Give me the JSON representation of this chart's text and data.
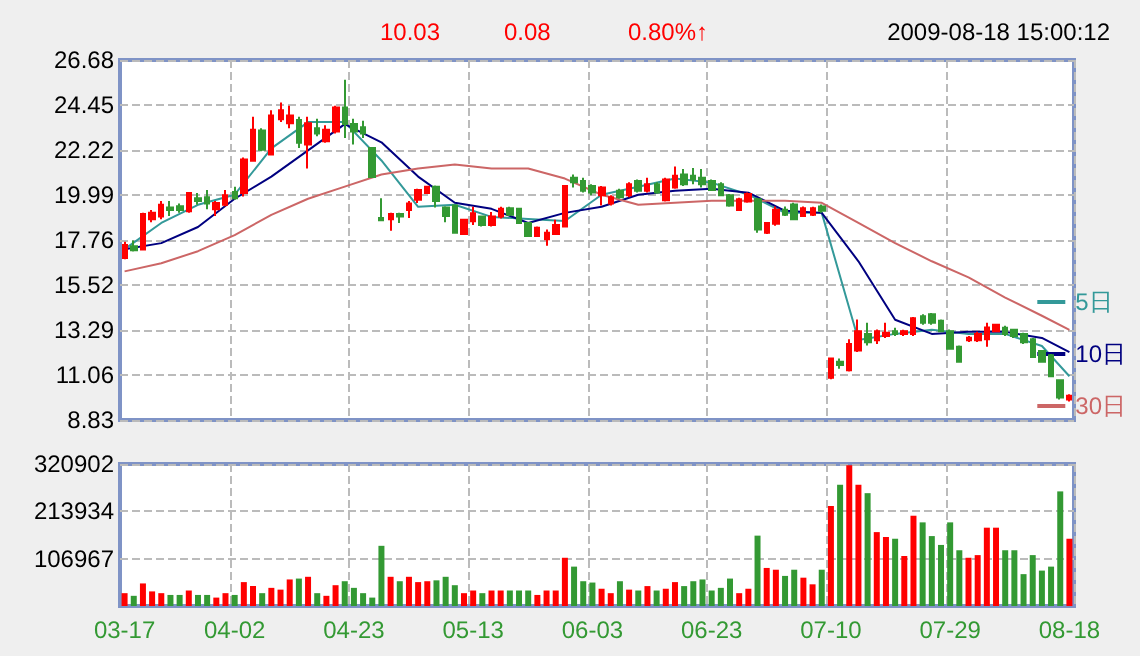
{
  "chart_data": [
    {
      "type": "candlestick",
      "tick_labels": "y",
      "grid": true,
      "legend": "right",
      "annotations": [
        "10.03",
        "0.08",
        "0.80%↑",
        "2009-08-18 15:00:12"
      ],
      "categories": [
        null,
        null,
        null,
        null,
        null,
        null,
        null,
        null,
        null,
        null,
        null,
        null,
        null,
        null,
        null,
        null,
        null,
        null,
        null,
        null,
        null,
        null,
        null,
        null,
        null,
        null,
        null,
        null,
        null,
        null,
        null,
        null,
        null,
        null,
        null,
        null,
        null,
        null,
        null,
        null,
        null,
        null,
        null,
        null,
        null,
        null,
        null,
        null,
        null,
        null,
        null,
        null,
        null,
        null,
        null,
        null,
        null,
        null,
        null,
        null,
        null,
        null,
        null,
        null,
        null,
        null,
        null,
        null,
        null,
        null,
        null,
        null,
        null,
        null,
        null,
        null,
        null,
        null,
        null,
        null,
        null,
        null,
        null,
        null,
        null,
        null,
        null,
        null,
        null,
        null,
        null,
        null,
        null,
        null,
        null,
        null,
        null,
        null,
        null,
        null,
        null,
        null,
        null,
        null
      ],
      "ylim": [
        8.83,
        26.68
      ],
      "yticks": [
        8.83,
        11.06,
        13.29,
        15.52,
        17.76,
        19.99,
        22.22,
        24.45,
        26.68
      ],
      "ohlc": [
        [
          16.86,
          17.67,
          16.8,
          17.51
        ],
        [
          17.44,
          17.73,
          17.18,
          17.25
        ],
        [
          17.28,
          19.11,
          17.25,
          19.05
        ],
        [
          18.79,
          19.24,
          18.63,
          19.11
        ],
        [
          18.92,
          19.69,
          18.79,
          19.5
        ],
        [
          19.37,
          19.69,
          18.95,
          19.24
        ],
        [
          19.43,
          19.56,
          19.11,
          19.24
        ],
        [
          19.18,
          20.14,
          19.11,
          20.08
        ],
        [
          19.82,
          20.08,
          19.5,
          19.69
        ],
        [
          19.88,
          20.24,
          19.28,
          19.56
        ],
        [
          19.28,
          19.69,
          18.95,
          19.59
        ],
        [
          19.5,
          20.24,
          19.43,
          19.98
        ],
        [
          20.14,
          20.4,
          19.75,
          19.82
        ],
        [
          20.08,
          21.84,
          19.91,
          21.75
        ],
        [
          21.68,
          23.87,
          21.68,
          23.22
        ],
        [
          23.19,
          23.29,
          22.16,
          22.23
        ],
        [
          22.0,
          24.19,
          21.94,
          23.93
        ],
        [
          23.74,
          24.57,
          23.61,
          24.19
        ],
        [
          23.55,
          24.41,
          23.29,
          23.93
        ],
        [
          23.71,
          23.87,
          22.32,
          22.58
        ],
        [
          22.49,
          23.87,
          21.3,
          23.55
        ],
        [
          23.29,
          23.77,
          22.9,
          23.03
        ],
        [
          22.65,
          23.45,
          22.58,
          23.22
        ],
        [
          23.13,
          24.41,
          23.03,
          24.32
        ],
        [
          24.32,
          25.7,
          22.81,
          23.51
        ],
        [
          23.51,
          23.77,
          22.49,
          23.13
        ],
        [
          23.35,
          23.67,
          22.81,
          23.03
        ],
        [
          22.32,
          22.32,
          20.88,
          20.88
        ],
        [
          18.85,
          19.82,
          18.73,
          18.73
        ],
        [
          18.79,
          19.11,
          18.21,
          19.05
        ],
        [
          19.05,
          19.11,
          18.6,
          18.92
        ],
        [
          19.24,
          19.69,
          18.85,
          19.56
        ],
        [
          19.75,
          20.3,
          19.59,
          20.24
        ],
        [
          20.08,
          20.4,
          20.08,
          20.4
        ],
        [
          20.4,
          20.46,
          19.37,
          19.69
        ],
        [
          19.37,
          19.43,
          18.63,
          18.95
        ],
        [
          19.46,
          19.5,
          18.11,
          18.11
        ],
        [
          18.05,
          18.76,
          18.0,
          18.76
        ],
        [
          18.69,
          19.4,
          18.5,
          19.08
        ],
        [
          18.92,
          18.92,
          18.43,
          18.5
        ],
        [
          18.5,
          19.14,
          18.43,
          18.92
        ],
        [
          18.92,
          19.4,
          18.82,
          19.3
        ],
        [
          19.33,
          19.4,
          18.95,
          19.01
        ],
        [
          19.3,
          19.33,
          18.55,
          18.6
        ],
        [
          18.6,
          18.65,
          17.95,
          17.95
        ],
        [
          17.95,
          18.43,
          17.9,
          18.36
        ],
        [
          17.79,
          18.27,
          17.47,
          18.11
        ],
        [
          18.05,
          18.76,
          18.05,
          18.5
        ],
        [
          18.43,
          20.43,
          18.43,
          20.43
        ],
        [
          20.84,
          21.0,
          20.36,
          20.62
        ],
        [
          20.68,
          20.84,
          20.11,
          20.2
        ],
        [
          20.43,
          20.52,
          19.98,
          20.11
        ],
        [
          19.98,
          20.43,
          19.46,
          20.36
        ],
        [
          19.56,
          19.98,
          19.46,
          19.88
        ],
        [
          20.2,
          20.3,
          19.8,
          19.88
        ],
        [
          19.98,
          20.62,
          19.88,
          20.52
        ],
        [
          20.68,
          20.75,
          20.11,
          20.2
        ],
        [
          20.2,
          20.84,
          20.11,
          20.52
        ],
        [
          20.52,
          20.62,
          20.05,
          20.11
        ],
        [
          19.72,
          20.84,
          19.66,
          20.75
        ],
        [
          20.36,
          21.4,
          20.3,
          20.94
        ],
        [
          21.0,
          21.27,
          20.43,
          20.52
        ],
        [
          20.94,
          21.33,
          20.52,
          20.75
        ],
        [
          20.84,
          21.27,
          20.36,
          20.52
        ],
        [
          20.68,
          20.75,
          20.2,
          20.23
        ],
        [
          20.52,
          20.62,
          19.95,
          19.98
        ],
        [
          19.98,
          20.04,
          19.4,
          19.46
        ],
        [
          19.24,
          19.85,
          19.2,
          19.78
        ],
        [
          19.66,
          20.11,
          19.6,
          20.04
        ],
        [
          19.78,
          19.85,
          18.11,
          18.27
        ],
        [
          18.11,
          18.6,
          18.05,
          18.6
        ],
        [
          18.56,
          19.42,
          18.46,
          19.26
        ],
        [
          19.26,
          19.42,
          18.94,
          19.01
        ],
        [
          19.52,
          19.6,
          18.78,
          18.78
        ],
        [
          18.94,
          19.42,
          18.9,
          19.33
        ],
        [
          19.01,
          19.4,
          18.94,
          19.33
        ],
        [
          19.42,
          19.52,
          19.1,
          19.2
        ],
        [
          10.92,
          11.88,
          10.85,
          11.88
        ],
        [
          11.72,
          11.88,
          11.37,
          11.56
        ],
        [
          11.3,
          12.84,
          11.24,
          12.6
        ],
        [
          12.27,
          13.81,
          12.2,
          13.23
        ],
        [
          13.1,
          13.65,
          12.52,
          12.68
        ],
        [
          12.78,
          13.32,
          12.6,
          13.23
        ],
        [
          13.0,
          13.65,
          12.9,
          13.16
        ],
        [
          13.23,
          13.4,
          13.0,
          13.1
        ],
        [
          13.1,
          13.3,
          13.0,
          13.23
        ],
        [
          13.1,
          13.94,
          13.0,
          13.87
        ],
        [
          13.97,
          14.07,
          13.55,
          13.65
        ],
        [
          14.07,
          14.13,
          13.55,
          13.65
        ],
        [
          13.75,
          13.81,
          13.2,
          13.23
        ],
        [
          13.23,
          13.32,
          12.36,
          12.36
        ],
        [
          12.46,
          12.52,
          11.72,
          11.72
        ],
        [
          12.78,
          13.0,
          12.7,
          12.91
        ],
        [
          12.78,
          13.2,
          12.7,
          13.1
        ],
        [
          12.84,
          13.65,
          12.46,
          13.42
        ],
        [
          13.23,
          13.6,
          13.2,
          13.55
        ],
        [
          13.4,
          13.5,
          13.0,
          13.1
        ],
        [
          13.3,
          13.35,
          12.9,
          13.0
        ],
        [
          13.1,
          13.16,
          12.6,
          12.68
        ],
        [
          12.84,
          12.9,
          11.9,
          11.95
        ],
        [
          12.25,
          12.3,
          11.72,
          11.72
        ],
        [
          12.04,
          12.1,
          10.98,
          11.0
        ],
        [
          10.8,
          10.85,
          9.85,
          9.95
        ],
        [
          9.85,
          10.11,
          9.75,
          10.03
        ]
      ],
      "colors": [
        "#ff0000",
        "#339933",
        "#ff0000",
        "#ff0000",
        "#ff0000",
        "#339933",
        "#339933",
        "#ff0000",
        "#339933",
        "#339933",
        "#ff0000",
        "#ff0000",
        "#339933",
        "#ff0000",
        "#ff0000",
        "#339933",
        "#ff0000",
        "#ff0000",
        "#ff0000",
        "#339933",
        "#ff0000",
        "#339933",
        "#ff0000",
        "#ff0000",
        "#339933",
        "#339933",
        "#339933",
        "#339933",
        "#339933",
        "#ff0000",
        "#339933",
        "#ff0000",
        "#ff0000",
        "#ff0000",
        "#339933",
        "#339933",
        "#339933",
        "#ff0000",
        "#ff0000",
        "#339933",
        "#ff0000",
        "#ff0000",
        "#339933",
        "#339933",
        "#339933",
        "#ff0000",
        "#ff0000",
        "#ff0000",
        "#ff0000",
        "#339933",
        "#339933",
        "#339933",
        "#ff0000",
        "#ff0000",
        "#339933",
        "#ff0000",
        "#339933",
        "#ff0000",
        "#339933",
        "#ff0000",
        "#ff0000",
        "#339933",
        "#339933",
        "#339933",
        "#339933",
        "#339933",
        "#339933",
        "#ff0000",
        "#ff0000",
        "#339933",
        "#ff0000",
        "#ff0000",
        "#339933",
        "#339933",
        "#ff0000",
        "#ff0000",
        "#339933",
        "#ff0000",
        "#339933",
        "#ff0000",
        "#ff0000",
        "#339933",
        "#ff0000",
        "#ff0000",
        "#339933",
        "#ff0000",
        "#ff0000",
        "#339933",
        "#339933",
        "#339933",
        "#339933",
        "#339933",
        "#ff0000",
        "#ff0000",
        "#ff0000",
        "#ff0000",
        "#339933",
        "#339933",
        "#339933",
        "#339933",
        "#339933",
        "#339933",
        "#339933",
        "#ff0000"
      ],
      "series": [
        {
          "type": "line",
          "name": "5日",
          "color": "#339999",
          "values": [
            17.3,
            null,
            null,
            null,
            18.6,
            null,
            null,
            null,
            19.5,
            null,
            null,
            null,
            20.0,
            null,
            null,
            null,
            22.3,
            null,
            null,
            null,
            23.6,
            null,
            null,
            null,
            23.6,
            null,
            null,
            null,
            21.7,
            null,
            null,
            null,
            19.4,
            null,
            null,
            null,
            19.5,
            null,
            null,
            null,
            18.9,
            null,
            null,
            null,
            18.8,
            null,
            null,
            null,
            18.7,
            null,
            null,
            null,
            20.0,
            null,
            null,
            null,
            20.4,
            null,
            null,
            null,
            20.8,
            null,
            null,
            null,
            20.6,
            null,
            null,
            null,
            20.0,
            null,
            null,
            null,
            19.1,
            null,
            null,
            null,
            19.1,
            null,
            null,
            null,
            12.8,
            null,
            null,
            null,
            13.1,
            null,
            null,
            null,
            13.3,
            null,
            null,
            null,
            13.1,
            null,
            null,
            null,
            13.1,
            null,
            null,
            null,
            12.5,
            null,
            null,
            11.0
          ]
        },
        {
          "type": "line",
          "name": "10日",
          "color": "#000080",
          "values": [
            17.3,
            null,
            null,
            null,
            17.6,
            null,
            null,
            null,
            18.4,
            null,
            null,
            null,
            19.8,
            null,
            null,
            null,
            20.9,
            null,
            null,
            null,
            22.2,
            null,
            null,
            null,
            23.5,
            null,
            null,
            null,
            22.6,
            null,
            null,
            null,
            20.9,
            null,
            null,
            null,
            19.6,
            null,
            null,
            null,
            19.3,
            null,
            null,
            null,
            18.6,
            null,
            null,
            null,
            19.1,
            null,
            null,
            null,
            19.4,
            null,
            null,
            null,
            20.0,
            null,
            null,
            null,
            20.2,
            null,
            null,
            null,
            20.3,
            null,
            null,
            null,
            20.1,
            null,
            null,
            null,
            19.2,
            null,
            null,
            null,
            19.1,
            null,
            null,
            null,
            16.7,
            null,
            null,
            null,
            13.8,
            null,
            null,
            null,
            13.1,
            null,
            null,
            null,
            13.2,
            null,
            null,
            null,
            13.2,
            null,
            null,
            null,
            12.9,
            null,
            null,
            12.2
          ]
        },
        {
          "type": "line",
          "name": "30日",
          "color": "#cc6666",
          "values": [
            16.2,
            null,
            null,
            null,
            16.6,
            null,
            null,
            null,
            17.2,
            null,
            null,
            null,
            18.0,
            null,
            null,
            null,
            19.0,
            null,
            null,
            null,
            19.8,
            null,
            null,
            null,
            20.4,
            null,
            null,
            null,
            21.0,
            null,
            null,
            null,
            21.3,
            null,
            null,
            null,
            21.5,
            null,
            null,
            null,
            21.3,
            null,
            null,
            null,
            21.3,
            null,
            null,
            null,
            20.8,
            null,
            null,
            null,
            20.0,
            null,
            null,
            null,
            19.5,
            null,
            null,
            null,
            19.6,
            null,
            null,
            null,
            19.7,
            null,
            null,
            null,
            19.7,
            null,
            null,
            null,
            19.7,
            null,
            null,
            null,
            19.6,
            null,
            null,
            null,
            18.6,
            null,
            null,
            null,
            17.6,
            null,
            null,
            null,
            16.7,
            null,
            null,
            null,
            15.9,
            null,
            null,
            null,
            14.9,
            null,
            null,
            null,
            14.0,
            null,
            null,
            13.3
          ]
        }
      ]
    },
    {
      "type": "bar",
      "grid": true,
      "categories": [
        "03-17",
        null,
        null,
        null,
        null,
        null,
        null,
        null,
        null,
        null,
        null,
        null,
        "04-02",
        null,
        null,
        null,
        null,
        null,
        null,
        null,
        null,
        null,
        null,
        null,
        null,
        "04-23",
        null,
        null,
        null,
        null,
        null,
        null,
        null,
        null,
        null,
        null,
        null,
        null,
        "05-13",
        null,
        null,
        null,
        null,
        null,
        null,
        null,
        null,
        null,
        null,
        null,
        null,
        "06-03",
        null,
        null,
        null,
        null,
        null,
        null,
        null,
        null,
        null,
        null,
        null,
        null,
        "06-23",
        null,
        null,
        null,
        null,
        null,
        null,
        null,
        null,
        null,
        null,
        null,
        null,
        "07-10",
        null,
        null,
        null,
        null,
        null,
        null,
        null,
        null,
        null,
        null,
        null,
        null,
        "07-29",
        null,
        null,
        null,
        null,
        null,
        null,
        null,
        null,
        null,
        null,
        null,
        null,
        "08-18"
      ],
      "ylim": [
        0,
        320902
      ],
      "yticks": [
        106967,
        213934,
        320902
      ],
      "values": [
        29000,
        23000,
        51000,
        33000,
        29000,
        25000,
        25000,
        35000,
        25000,
        25000,
        19000,
        29000,
        25000,
        54000,
        45000,
        29000,
        41000,
        37000,
        60000,
        62000,
        66000,
        29000,
        23000,
        47000,
        56000,
        41000,
        29000,
        19000,
        136000,
        66000,
        56000,
        66000,
        54000,
        56000,
        58000,
        66000,
        47000,
        29000,
        35000,
        29000,
        35000,
        35000,
        35000,
        35000,
        35000,
        25000,
        35000,
        35000,
        109000,
        89000,
        56000,
        53000,
        39000,
        29000,
        56000,
        37000,
        35000,
        45000,
        35000,
        39000,
        54000,
        45000,
        56000,
        60000,
        35000,
        41000,
        62000,
        29000,
        39000,
        159000,
        86000,
        82000,
        68000,
        82000,
        64000,
        49000,
        82000,
        226000,
        274000,
        318000,
        274000,
        255000,
        167000,
        156000,
        152000,
        113000,
        204000,
        189000,
        158000,
        138000,
        189000,
        126000,
        109000,
        115000,
        177000,
        177000,
        126000,
        126000,
        72000,
        115000,
        80000,
        89000,
        259000,
        152000
      ],
      "colors": [
        "#ff0000",
        "#339933",
        "#ff0000",
        "#ff0000",
        "#ff0000",
        "#339933",
        "#339933",
        "#ff0000",
        "#339933",
        "#339933",
        "#ff0000",
        "#ff0000",
        "#339933",
        "#ff0000",
        "#ff0000",
        "#339933",
        "#ff0000",
        "#ff0000",
        "#ff0000",
        "#339933",
        "#ff0000",
        "#339933",
        "#ff0000",
        "#ff0000",
        "#339933",
        "#339933",
        "#339933",
        "#339933",
        "#339933",
        "#ff0000",
        "#339933",
        "#ff0000",
        "#ff0000",
        "#ff0000",
        "#339933",
        "#339933",
        "#339933",
        "#ff0000",
        "#ff0000",
        "#339933",
        "#ff0000",
        "#ff0000",
        "#339933",
        "#339933",
        "#339933",
        "#ff0000",
        "#ff0000",
        "#ff0000",
        "#ff0000",
        "#339933",
        "#339933",
        "#339933",
        "#ff0000",
        "#ff0000",
        "#339933",
        "#ff0000",
        "#339933",
        "#ff0000",
        "#339933",
        "#ff0000",
        "#ff0000",
        "#339933",
        "#339933",
        "#339933",
        "#339933",
        "#339933",
        "#339933",
        "#ff0000",
        "#ff0000",
        "#339933",
        "#ff0000",
        "#ff0000",
        "#339933",
        "#339933",
        "#ff0000",
        "#ff0000",
        "#339933",
        "#ff0000",
        "#339933",
        "#ff0000",
        "#ff0000",
        "#339933",
        "#ff0000",
        "#ff0000",
        "#339933",
        "#ff0000",
        "#ff0000",
        "#339933",
        "#339933",
        "#339933",
        "#339933",
        "#339933",
        "#ff0000",
        "#ff0000",
        "#ff0000",
        "#ff0000",
        "#339933",
        "#339933",
        "#339933",
        "#339933",
        "#339933",
        "#339933",
        "#339933",
        "#ff0000"
      ]
    }
  ]
}
